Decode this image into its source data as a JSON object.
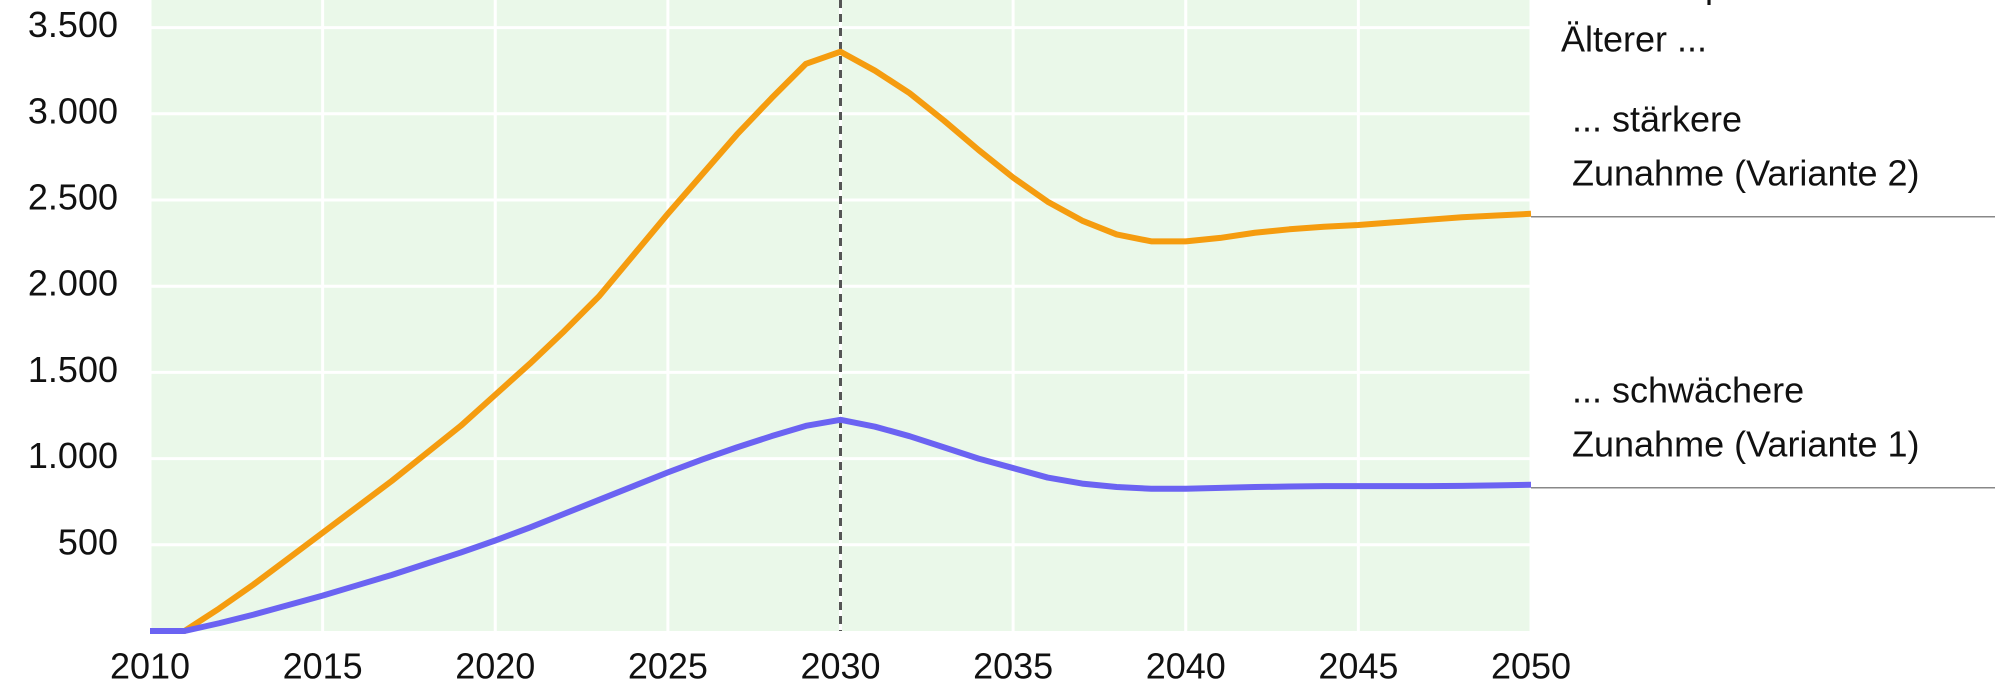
{
  "chart_data": {
    "type": "line",
    "annotation_lines": [
      "Erwerbsquoten",
      "Älterer ..."
    ],
    "x": [
      2010,
      2011,
      2012,
      2013,
      2014,
      2015,
      2016,
      2017,
      2018,
      2019,
      2020,
      2021,
      2022,
      2023,
      2024,
      2025,
      2026,
      2027,
      2028,
      2029,
      2030,
      2031,
      2032,
      2033,
      2034,
      2035,
      2036,
      2037,
      2038,
      2039,
      2040,
      2041,
      2042,
      2043,
      2044,
      2045,
      2046,
      2047,
      2048,
      2049,
      2050
    ],
    "series": [
      {
        "name_lines": [
          "... stärkere",
          "Zunahme (Variante 2)"
        ],
        "color": "#f59c0f",
        "values": [
          0,
          0,
          130,
          270,
          420,
          570,
          720,
          870,
          1030,
          1190,
          1370,
          1550,
          1740,
          1940,
          2180,
          2420,
          2650,
          2880,
          3090,
          3290,
          3360,
          3250,
          3120,
          2960,
          2790,
          2630,
          2490,
          2380,
          2300,
          2260,
          2260,
          2280,
          2310,
          2330,
          2345,
          2355,
          2370,
          2385,
          2400,
          2410,
          2420
        ]
      },
      {
        "name_lines": [
          "... schwächere",
          "Zunahme (Variante 1)"
        ],
        "color": "#6b63f2",
        "values": [
          0,
          0,
          45,
          95,
          150,
          205,
          265,
          325,
          390,
          455,
          525,
          600,
          680,
          760,
          840,
          920,
          995,
          1065,
          1130,
          1190,
          1225,
          1185,
          1130,
          1065,
          1000,
          945,
          890,
          855,
          835,
          825,
          825,
          830,
          835,
          838,
          840,
          840,
          840,
          840,
          842,
          845,
          848
        ]
      }
    ],
    "xlim": [
      2010,
      2050
    ],
    "xticks": [
      2010,
      2015,
      2020,
      2025,
      2030,
      2035,
      2040,
      2045,
      2050
    ],
    "ylim": [
      0,
      3660
    ],
    "yticks": [
      500,
      {
        "value": 1000,
        "label": "1.000"
      },
      {
        "value": 1500,
        "label": "1.500"
      },
      {
        "value": 2000,
        "label": "2.000"
      },
      {
        "value": 2500,
        "label": "2.500"
      },
      {
        "value": 3000,
        "label": "3.000"
      },
      {
        "value": 3500,
        "label": "3.500"
      }
    ],
    "vline": 2030,
    "grid": true
  }
}
